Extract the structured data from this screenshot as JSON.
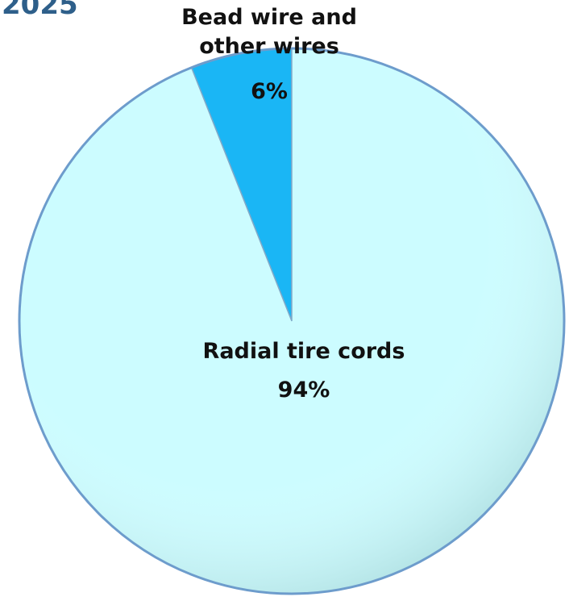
{
  "chart_data": {
    "type": "pie",
    "title": "2025",
    "categories": [
      "Bead wire and other wires",
      "Radial tire cords"
    ],
    "values": [
      6,
      94
    ],
    "value_labels": [
      "6%",
      "94%"
    ],
    "colors": [
      "#1ab6f5",
      "#ccfcff"
    ]
  }
}
